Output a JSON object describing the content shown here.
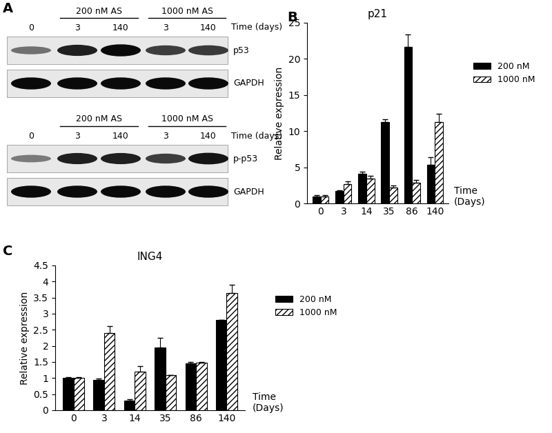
{
  "blot": {
    "panel_label": "A",
    "blots": [
      {
        "control_time": 0,
        "time_label": "Time (days)",
        "groups": [
          {
            "label": "200 nM AS",
            "times": [
              3,
              140
            ]
          },
          {
            "label": "1000 nM AS",
            "times": [
              3,
              140
            ]
          }
        ],
        "rows": [
          {
            "name": "p53",
            "band_intensity": [
              0.45,
              0.85,
              0.95,
              0.7,
              0.72
            ]
          },
          {
            "name": "GAPDH",
            "band_intensity": [
              0.95,
              0.95,
              0.95,
              0.95,
              0.95
            ]
          }
        ]
      },
      {
        "control_time": 0,
        "time_label": "Time (days)",
        "groups": [
          {
            "label": "200 nM AS",
            "times": [
              3,
              140
            ]
          },
          {
            "label": "1000 nM AS",
            "times": [
              3,
              140
            ]
          }
        ],
        "rows": [
          {
            "name": "p-p53",
            "band_intensity": [
              0.4,
              0.85,
              0.85,
              0.7,
              0.9
            ]
          },
          {
            "name": "GAPDH",
            "band_intensity": [
              0.95,
              0.95,
              0.95,
              0.95,
              0.95
            ]
          }
        ]
      }
    ]
  },
  "chart_data": [
    {
      "type": "bar",
      "panel_label": "B",
      "title": "p21",
      "y_label": "Relative expression",
      "x_label": "Time\n(Days)",
      "categories": [
        "0",
        "3",
        "14",
        "35",
        "86",
        "140"
      ],
      "series": [
        {
          "name": "200 nM",
          "color": "#000000",
          "values": [
            1.0,
            1.7,
            4.1,
            11.3,
            21.7,
            5.3
          ],
          "errors": [
            0.1,
            0.1,
            0.3,
            0.3,
            1.7,
            1.1
          ]
        },
        {
          "name": "1000 nM",
          "color": "#ffffff",
          "values": [
            1.0,
            2.7,
            3.4,
            2.2,
            2.9,
            11.3
          ],
          "errors": [
            0.1,
            0.4,
            0.4,
            0.3,
            0.3,
            1.1
          ]
        }
      ],
      "ylim": [
        0,
        25
      ],
      "yticks": [
        0,
        5,
        10,
        15,
        20,
        25
      ],
      "legend": "center left"
    },
    {
      "type": "bar",
      "panel_label": "C",
      "title": "ING4",
      "y_label": "Relative expression",
      "x_label": "Time\n(Days)",
      "categories": [
        "0",
        "3",
        "14",
        "35",
        "86",
        "140"
      ],
      "series": [
        {
          "name": "200 nM",
          "color": "#000000",
          "values": [
            1.0,
            0.95,
            0.3,
            1.95,
            1.45,
            2.8
          ],
          "errors": [
            0.03,
            0.03,
            0.05,
            0.3,
            0.05,
            0
          ]
        },
        {
          "name": "1000 nM",
          "color": "#ffffff",
          "values": [
            1.0,
            2.4,
            1.2,
            1.1,
            1.47,
            3.65
          ],
          "errors": [
            0.03,
            0.22,
            0.17,
            0,
            0.03,
            0.25
          ]
        }
      ],
      "ylim": [
        0,
        4.5
      ],
      "yticks": [
        0,
        0.5,
        1,
        1.5,
        2,
        2.5,
        3,
        3.5,
        4,
        4.5
      ],
      "legend": "center left"
    }
  ]
}
